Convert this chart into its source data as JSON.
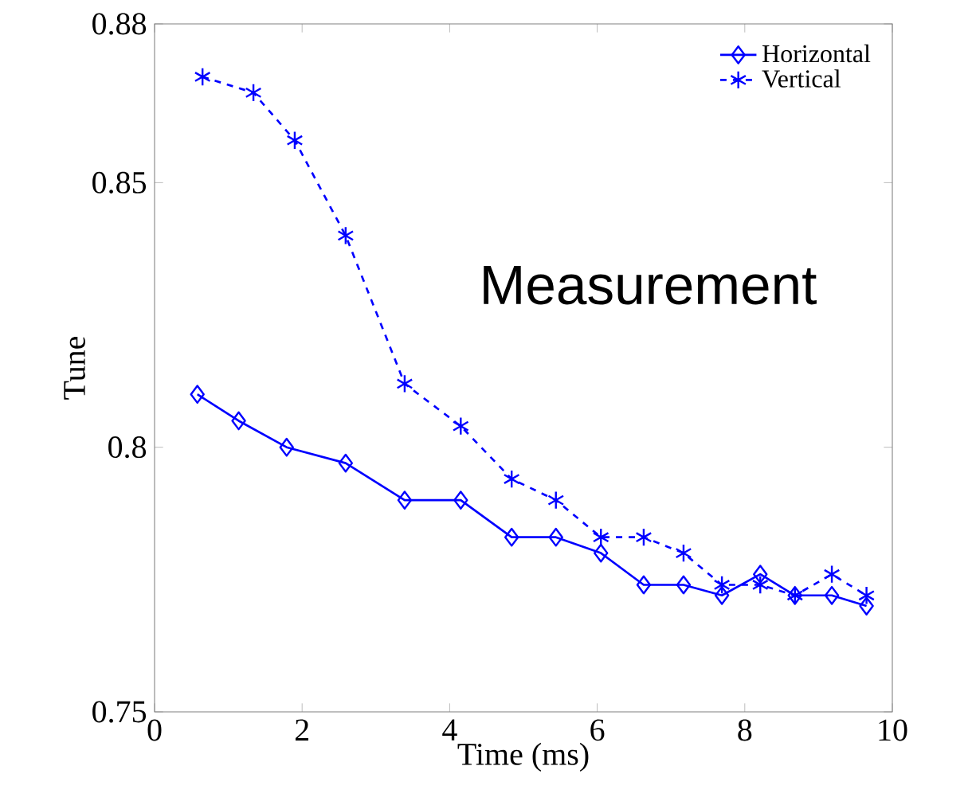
{
  "chart_data": {
    "type": "line",
    "xlabel": "Time (ms)",
    "ylabel": "Tune",
    "annotations": [
      "Measurement"
    ],
    "x": [
      0.58,
      1.14,
      1.79,
      2.59,
      3.39,
      4.15,
      4.84,
      5.44,
      6.05,
      6.63,
      7.17,
      7.69,
      8.21,
      8.68,
      9.18,
      9.65
    ],
    "series": [
      {
        "name": "Horizontal",
        "color": "#0000ff",
        "marker": "diamond",
        "line_style": "solid",
        "values": [
          0.81,
          0.805,
          0.8,
          0.797,
          0.79,
          0.79,
          0.783,
          0.783,
          0.78,
          0.774,
          0.774,
          0.772,
          0.776,
          0.772,
          0.772,
          0.77
        ]
      },
      {
        "name": "Vertical",
        "color": "#0000ff",
        "marker": "cross",
        "line_style": "dashed",
        "x": [
          0.65,
          1.34,
          1.9,
          2.59,
          3.39,
          4.15,
          4.84,
          5.44,
          6.05,
          6.63,
          7.17,
          7.69,
          8.21,
          8.68,
          9.18,
          9.65
        ],
        "values": [
          0.87,
          0.867,
          0.858,
          0.84,
          0.812,
          0.804,
          0.794,
          0.79,
          0.783,
          0.783,
          0.78,
          0.774,
          0.774,
          0.772,
          0.776,
          0.772
        ]
      }
    ],
    "xlim": [
      0,
      10
    ],
    "ylim": [
      0.75,
      0.88
    ],
    "xticks": [
      0,
      2,
      4,
      6,
      8,
      10
    ],
    "yticks": [
      0.75,
      0.8,
      0.85,
      0.88
    ],
    "grid": false,
    "legend": "top right"
  }
}
